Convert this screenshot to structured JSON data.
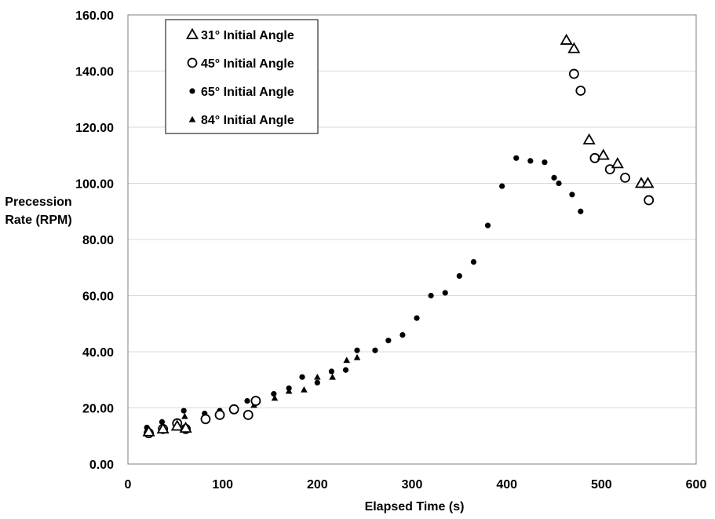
{
  "chart_data": {
    "type": "scatter",
    "xlabel": "Elapsed Time (s)",
    "ylabel": [
      "Precession",
      "Rate (RPM)"
    ],
    "xlim": [
      0,
      600
    ],
    "ylim": [
      0,
      160
    ],
    "x_ticks": [
      0,
      100,
      200,
      300,
      400,
      500,
      600
    ],
    "y_ticks": [
      0,
      20,
      40,
      60,
      80,
      100,
      120,
      140,
      160
    ],
    "y_tick_labels": [
      "0.00",
      "20.00",
      "40.00",
      "60.00",
      "80.00",
      "100.00",
      "120.00",
      "140.00",
      "160.00"
    ],
    "grid": "horizontal",
    "legend_position": "top-left",
    "series": [
      {
        "name": "31° Initial Angle",
        "marker": "open-triangle",
        "points": [
          [
            22,
            11.5
          ],
          [
            37,
            12.5
          ],
          [
            52,
            13.5
          ],
          [
            61,
            12.8
          ],
          [
            463,
            151
          ],
          [
            471,
            148
          ],
          [
            487,
            115.5
          ],
          [
            502,
            110
          ],
          [
            517,
            107
          ],
          [
            542,
            100
          ],
          [
            549,
            100
          ]
        ]
      },
      {
        "name": "45° Initial Angle",
        "marker": "open-circle",
        "points": [
          [
            22,
            11
          ],
          [
            37,
            12.5
          ],
          [
            52,
            14.5
          ],
          [
            61,
            12.5
          ],
          [
            82,
            16
          ],
          [
            97,
            17.5
          ],
          [
            112,
            19.5
          ],
          [
            127,
            17.5
          ],
          [
            135,
            22.5
          ],
          [
            471,
            139
          ],
          [
            478,
            133
          ],
          [
            493,
            109
          ],
          [
            509,
            105
          ],
          [
            525,
            102
          ],
          [
            550,
            94
          ]
        ]
      },
      {
        "name": "65° Initial Angle",
        "marker": "filled-circle",
        "points": [
          [
            20,
            13
          ],
          [
            36,
            15
          ],
          [
            51,
            15
          ],
          [
            59,
            19
          ],
          [
            81,
            18
          ],
          [
            97,
            19
          ],
          [
            112,
            20
          ],
          [
            126,
            22.5
          ],
          [
            154,
            25
          ],
          [
            170,
            27
          ],
          [
            184,
            31
          ],
          [
            200,
            29
          ],
          [
            215,
            33
          ],
          [
            230,
            33.5
          ],
          [
            242,
            40.5
          ],
          [
            261,
            40.5
          ],
          [
            275,
            44
          ],
          [
            290,
            46
          ],
          [
            305,
            52
          ],
          [
            320,
            60
          ],
          [
            335,
            61
          ],
          [
            350,
            67
          ],
          [
            365,
            72
          ],
          [
            380,
            85
          ],
          [
            395,
            99
          ],
          [
            410,
            109
          ],
          [
            425,
            108
          ],
          [
            440,
            107.5
          ],
          [
            450,
            102
          ],
          [
            455,
            100
          ],
          [
            469,
            96
          ],
          [
            478,
            90
          ]
        ]
      },
      {
        "name": "84° Initial Angle",
        "marker": "filled-triangle",
        "points": [
          [
            22,
            12
          ],
          [
            37,
            13.5
          ],
          [
            51,
            14.5
          ],
          [
            60,
            17
          ],
          [
            82,
            17.5
          ],
          [
            97,
            18.5
          ],
          [
            112,
            20
          ],
          [
            133,
            21
          ],
          [
            155,
            23.5
          ],
          [
            170,
            26
          ],
          [
            186,
            26.5
          ],
          [
            200,
            31
          ],
          [
            216,
            31
          ],
          [
            231,
            37
          ],
          [
            242,
            38
          ]
        ]
      }
    ]
  }
}
